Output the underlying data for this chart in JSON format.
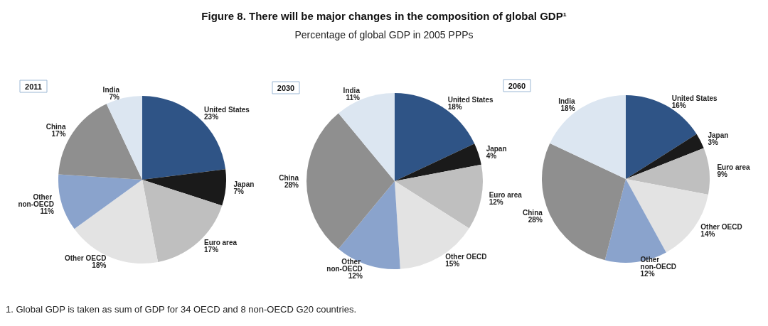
{
  "chart_data": {
    "type": "pie",
    "title": "Figure 8. There will be major changes in the composition of global GDP¹",
    "subtitle": "Percentage of global GDP in 2005 PPPs",
    "annotations": [
      "1. Global GDP is taken as sum of GDP for 34 OECD and 8 non-OECD G20 countries."
    ],
    "categories": [
      "United States",
      "Japan",
      "Euro area",
      "Other OECD",
      "Other non-OECD",
      "China",
      "India"
    ],
    "colors": [
      "#2f5486",
      "#1a1a1a",
      "#bfbfbf",
      "#e3e3e3",
      "#8aa3cc",
      "#8f8f8f",
      "#dce6f1"
    ],
    "legend": false,
    "series": [
      {
        "name": "2011",
        "values": [
          23,
          7,
          17,
          18,
          11,
          17,
          7
        ],
        "value_labels": [
          "23%",
          "7%",
          "17%",
          "18%",
          "11%",
          "17%",
          "7%"
        ]
      },
      {
        "name": "2030",
        "values": [
          18,
          4,
          12,
          15,
          12,
          28,
          11
        ],
        "value_labels": [
          "18%",
          "4%",
          "12%",
          "15%",
          "12%",
          "28%",
          "11%"
        ]
      },
      {
        "name": "2060",
        "values": [
          16,
          3,
          9,
          14,
          12,
          28,
          18
        ],
        "value_labels": [
          "16%",
          "3%",
          "9%",
          "14%",
          "12%",
          "28%",
          "18%"
        ]
      }
    ]
  }
}
